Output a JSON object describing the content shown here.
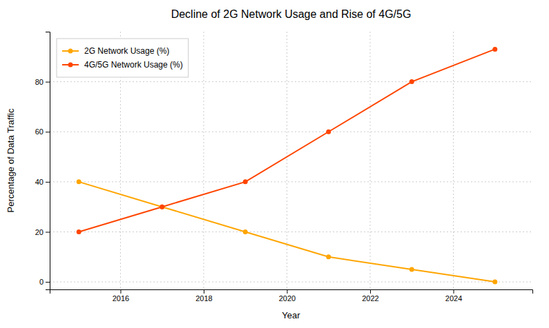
{
  "chart_data": {
    "type": "line",
    "title": "Decline of 2G Network Usage and Rise of 4G/5G",
    "xlabel": "Year",
    "ylabel": "Percentage of Data Traffic",
    "x": [
      2015,
      2017,
      2019,
      2021,
      2023,
      2025
    ],
    "series": [
      {
        "name": "2G Network Usage (%)",
        "color": "#FFA500",
        "marker": "circle",
        "values": [
          40,
          30,
          20,
          10,
          5,
          0
        ]
      },
      {
        "name": "4G/5G Network Usage (%)",
        "color": "#FF4500",
        "marker": "circle",
        "values": [
          20,
          30,
          40,
          60,
          80,
          93
        ]
      }
    ],
    "xlim": [
      2014.3,
      2025.9
    ],
    "ylim": [
      -3,
      100
    ],
    "xticks": [
      2016,
      2018,
      2020,
      2022,
      2024
    ],
    "yticks": [
      0,
      20,
      40,
      60,
      80
    ],
    "grid": true,
    "legend": "upper-left"
  }
}
